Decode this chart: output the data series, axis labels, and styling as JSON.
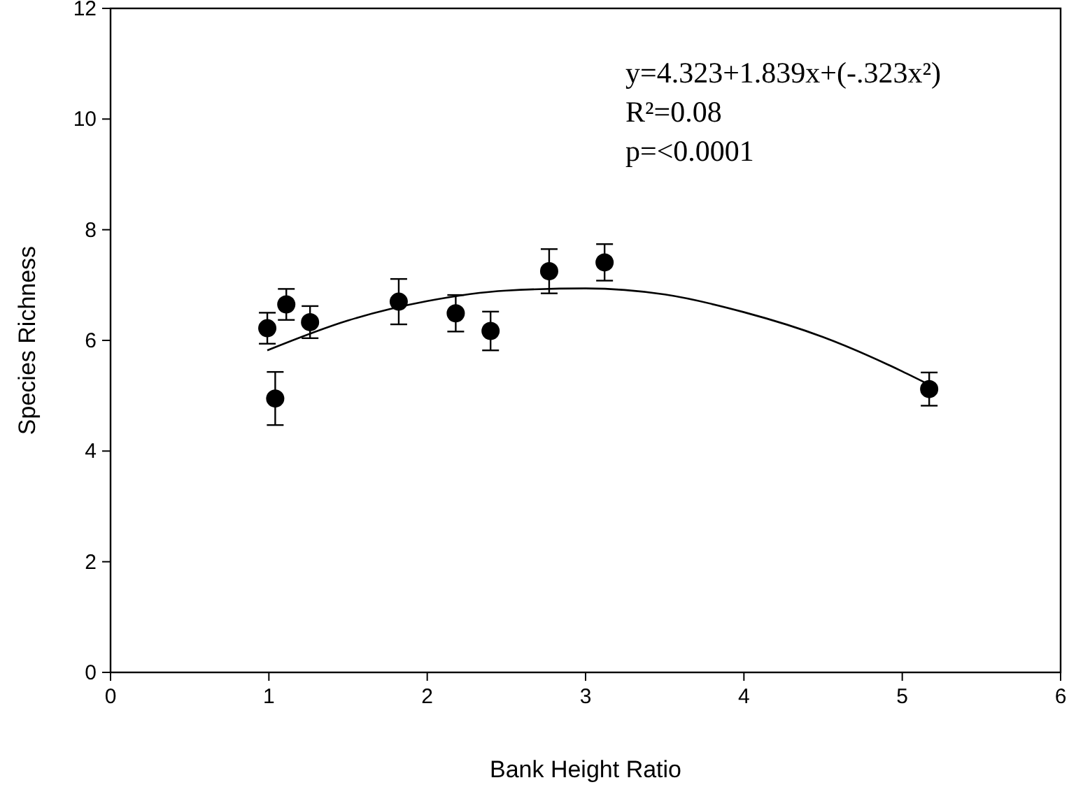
{
  "chart_data": {
    "type": "scatter",
    "xlabel": "Bank Height Ratio",
    "ylabel": "Species Richness",
    "xlim": [
      0,
      6
    ],
    "xticks": [
      0,
      1,
      2,
      3,
      4,
      5,
      6
    ],
    "ylim": [
      0,
      12
    ],
    "yticks": [
      0,
      2,
      4,
      6,
      8,
      10,
      12
    ],
    "grid": false,
    "annotations": [
      "y=4.323+1.839x+(-.323x²)",
      "R²=0.08",
      "p=<0.0001"
    ],
    "series": [
      {
        "color": "#000000",
        "marker": "circle",
        "x": [
          0.99,
          1.04,
          1.11,
          1.26,
          1.82,
          2.18,
          2.4,
          2.77,
          3.12,
          5.17
        ],
        "values": [
          6.22,
          4.95,
          6.65,
          6.33,
          6.7,
          6.49,
          6.17,
          7.25,
          7.41,
          5.12
        ],
        "errors": [
          0.28,
          0.48,
          0.28,
          0.29,
          0.41,
          0.33,
          0.35,
          0.4,
          0.33,
          0.3
        ]
      },
      {
        "type": "line",
        "color": "#000000",
        "line_style": "solid",
        "marker": "none",
        "x": [
          0.99,
          1.5,
          2,
          2.5,
          3,
          3.5,
          4,
          4.5,
          5,
          5.17
        ],
        "values": [
          5.82,
          6.36,
          6.71,
          6.9,
          6.94,
          6.83,
          6.51,
          6.06,
          5.44,
          5.2
        ]
      }
    ]
  }
}
